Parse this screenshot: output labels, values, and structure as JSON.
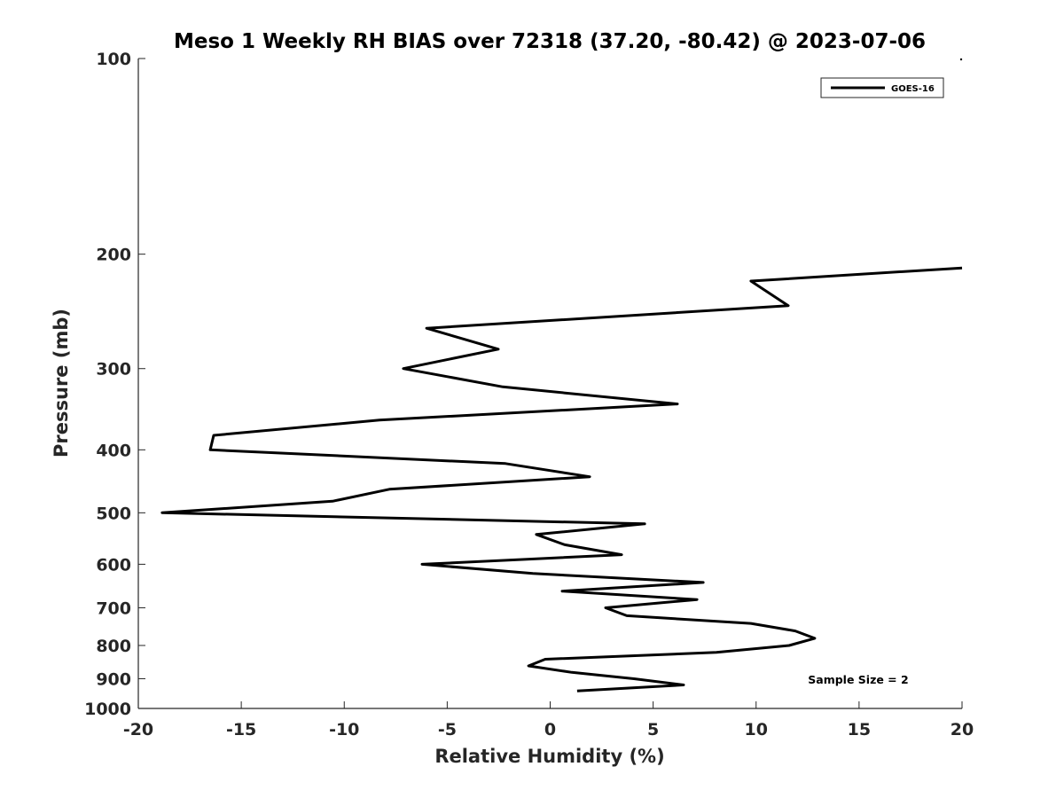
{
  "chart_data": {
    "type": "line",
    "title": "Meso 1 Weekly RH BIAS over 72318 (37.20, -80.42) @ 2023-07-06",
    "xlabel": "Relative Humidity (%)",
    "ylabel": "Pressure (mb)",
    "xlim": [
      -20,
      20
    ],
    "ylim": [
      100,
      1000
    ],
    "yscale": "log",
    "yreversed": true,
    "xticks": [
      -20,
      -15,
      -10,
      -5,
      0,
      5,
      10,
      15,
      20
    ],
    "yticks": [
      100,
      200,
      300,
      400,
      500,
      600,
      700,
      800,
      900,
      1000
    ],
    "grid": false,
    "legend": {
      "placement": "top-right",
      "entries": [
        "GOES-16"
      ]
    },
    "annotation": "Sample Size = 2",
    "series": [
      {
        "name": "GOES-16",
        "color": "#000000",
        "pressure": [
          210,
          220,
          240,
          260,
          280,
          300,
          320,
          340,
          360,
          380,
          400,
          420,
          440,
          460,
          480,
          500,
          520,
          540,
          560,
          580,
          600,
          620,
          640,
          660,
          680,
          700,
          720,
          740,
          760,
          780,
          800,
          820,
          840,
          860,
          880,
          900,
          920,
          940
        ],
        "values": [
          20.0,
          9.75,
          11.56,
          -6.0,
          -2.52,
          -7.13,
          -2.3,
          6.18,
          -8.29,
          -16.34,
          -16.51,
          -2.17,
          1.92,
          -7.81,
          -10.57,
          -18.84,
          4.59,
          -0.67,
          0.71,
          3.47,
          -6.22,
          -0.84,
          7.43,
          0.58,
          7.13,
          2.69,
          3.72,
          9.75,
          11.9,
          12.85,
          11.6,
          8.07,
          -0.24,
          -1.05,
          1.05,
          4.07,
          6.48,
          1.31
        ]
      }
    ]
  }
}
